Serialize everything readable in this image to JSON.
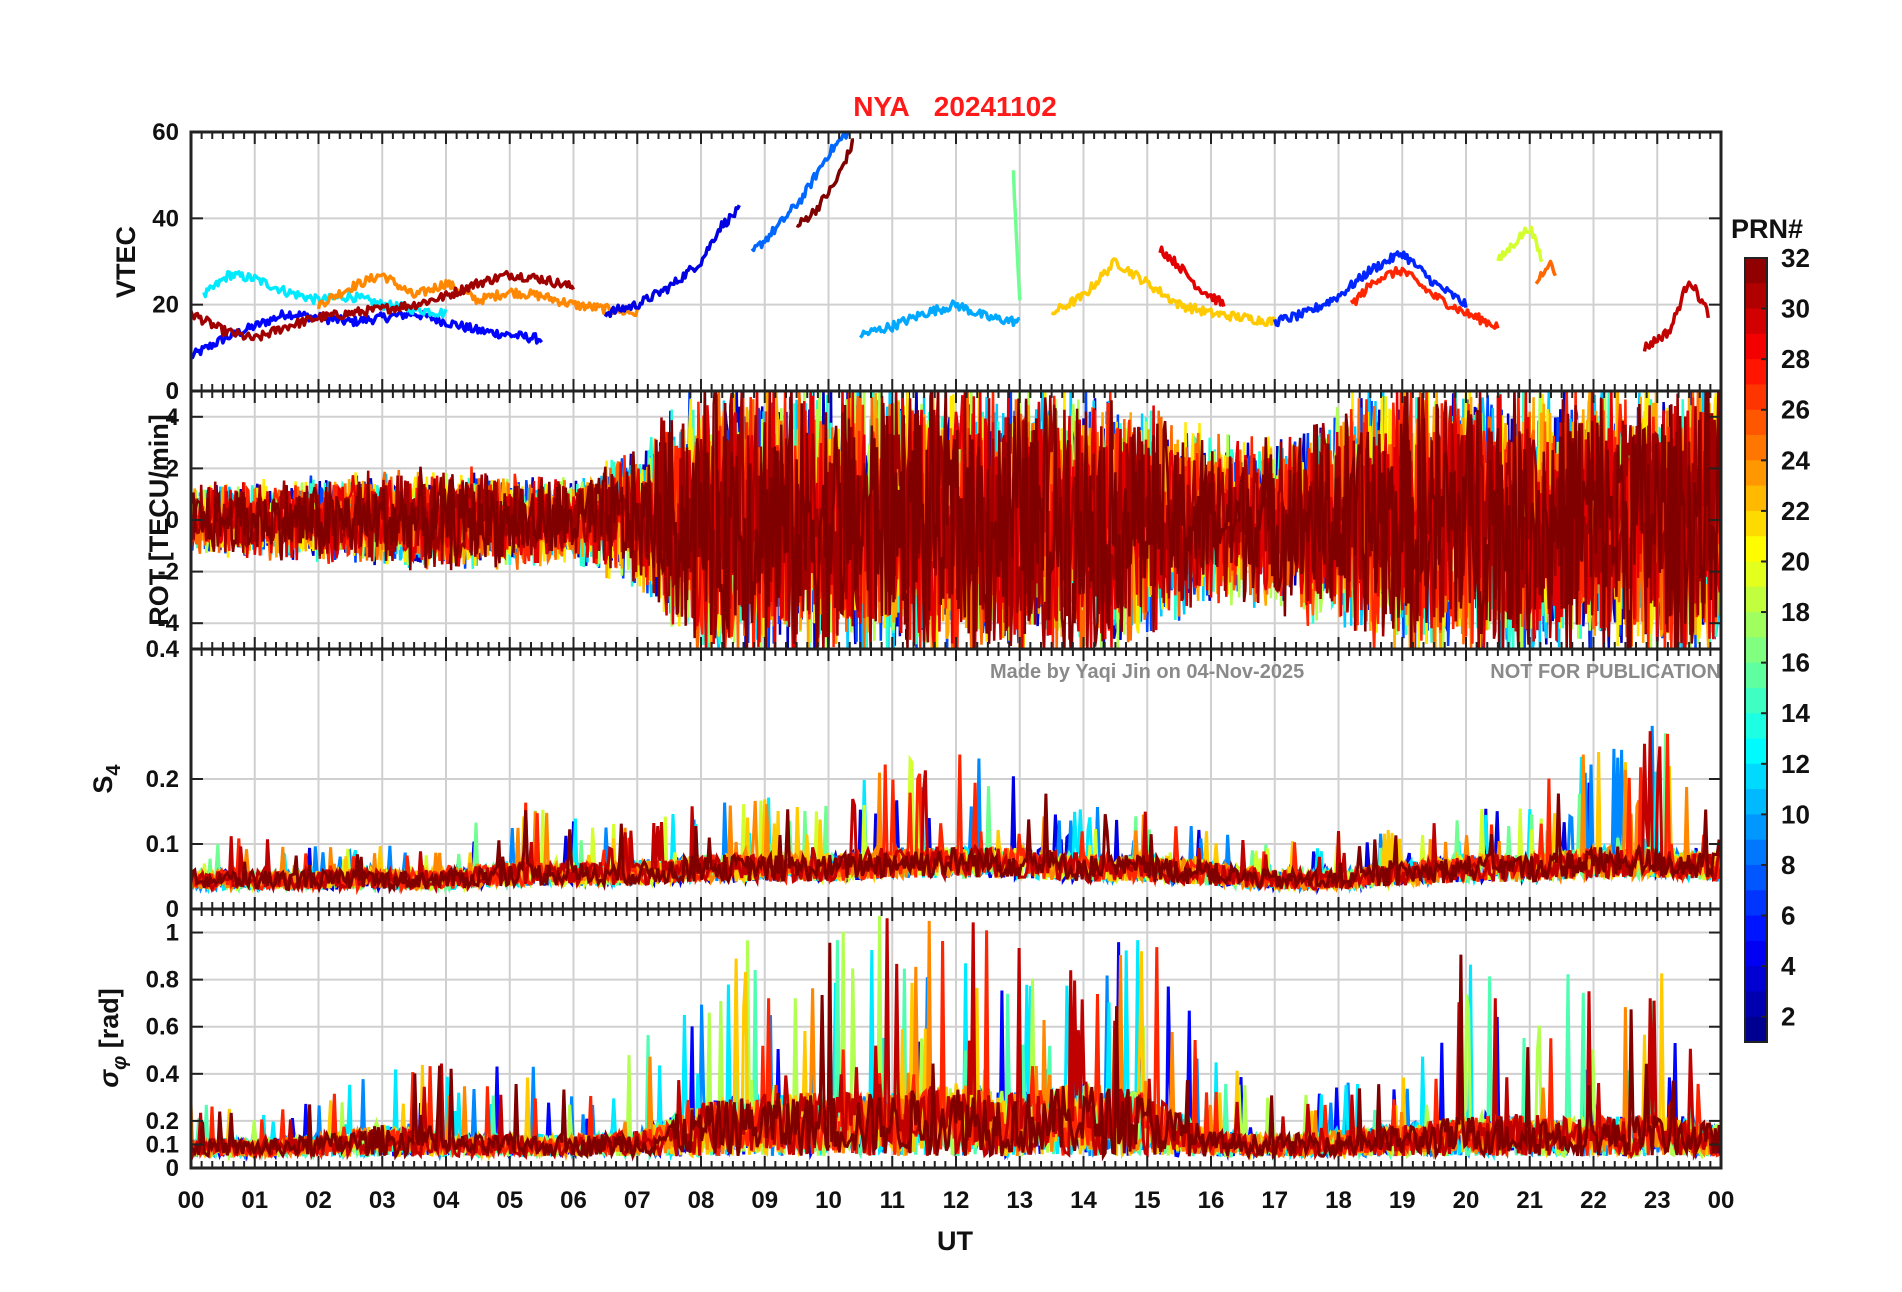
{
  "figure": {
    "title_station": "NYA",
    "title_date": "20241102",
    "watermark_author": "Made by Yaqi Jin on 04-Nov-2025",
    "watermark_notice": "NOT FOR PUBLICATION",
    "x_axis_label": "UT",
    "colorbar_title": "PRN#",
    "colorbar_ticks": [
      "2",
      "4",
      "6",
      "8",
      "10",
      "12",
      "14",
      "16",
      "18",
      "20",
      "22",
      "24",
      "26",
      "28",
      "30",
      "32"
    ],
    "colorbar_range": [
      1,
      32
    ],
    "colormap": "jet"
  },
  "chart_data": [
    {
      "type": "line",
      "panel": "vtec",
      "ylabel": "VTEC",
      "xlim": [
        0,
        24
      ],
      "ylim": [
        0,
        60
      ],
      "yticks": [
        0,
        20,
        40,
        60
      ],
      "xticks": [
        "00",
        "01",
        "02",
        "03",
        "04",
        "05",
        "06",
        "07",
        "08",
        "09",
        "10",
        "11",
        "12",
        "13",
        "14",
        "15",
        "16",
        "17",
        "18",
        "19",
        "20",
        "21",
        "22",
        "23",
        "00"
      ],
      "grid": true,
      "series_color_by": "PRN",
      "series": [
        {
          "prn": 5,
          "x": [
            0,
            0.5,
            1,
            1.5,
            2,
            2.5,
            3,
            3.5,
            4,
            4.5,
            5,
            5.5
          ],
          "y": [
            8,
            12,
            15,
            18,
            17,
            16,
            17,
            18,
            16,
            14,
            13,
            12
          ]
        },
        {
          "prn": 12,
          "x": [
            0.2,
            0.6,
            1,
            1.5,
            2,
            2.5,
            3,
            3.5,
            4
          ],
          "y": [
            22,
            27,
            26,
            23,
            21,
            22,
            20,
            19,
            18
          ]
        },
        {
          "prn": 24,
          "x": [
            2,
            2.5,
            3,
            3.5,
            4,
            4.5,
            5,
            5.5,
            6,
            6.5,
            7
          ],
          "y": [
            20,
            24,
            27,
            22,
            25,
            21,
            23,
            22,
            20,
            19,
            18
          ]
        },
        {
          "prn": 31,
          "x": [
            0,
            0.5,
            1,
            1.5,
            2,
            2.5,
            3,
            3.5,
            4,
            4.5,
            5,
            5.5,
            6
          ],
          "y": [
            18,
            14,
            12,
            15,
            17,
            18,
            19,
            20,
            22,
            25,
            27,
            26,
            24
          ]
        },
        {
          "prn": 4,
          "x": [
            6.5,
            7,
            7.5,
            8,
            8.3,
            8.6
          ],
          "y": [
            18,
            20,
            24,
            30,
            38,
            42
          ]
        },
        {
          "prn": 8,
          "x": [
            8.8,
            9.2,
            9.6,
            10,
            10.3
          ],
          "y": [
            32,
            38,
            45,
            55,
            60
          ]
        },
        {
          "prn": 32,
          "x": [
            9.5,
            9.8,
            10.1,
            10.4
          ],
          "y": [
            38,
            42,
            48,
            58
          ]
        },
        {
          "prn": 10,
          "x": [
            10.5,
            11,
            11.5,
            12,
            12.5,
            13
          ],
          "y": [
            13,
            15,
            18,
            20,
            17,
            16
          ]
        },
        {
          "prn": 16,
          "x": [
            12.9,
            13
          ],
          "y": [
            51,
            20
          ]
        },
        {
          "prn": 22,
          "x": [
            13.5,
            14,
            14.5,
            15,
            15.5,
            16,
            16.5,
            17
          ],
          "y": [
            18,
            22,
            30,
            25,
            20,
            18,
            17,
            16
          ]
        },
        {
          "prn": 29,
          "x": [
            15.2,
            15.5,
            15.8,
            16.2
          ],
          "y": [
            33,
            29,
            24,
            20
          ]
        },
        {
          "prn": 6,
          "x": [
            17,
            17.5,
            18,
            18.5,
            19,
            19.5,
            20
          ],
          "y": [
            16,
            18,
            22,
            28,
            32,
            25,
            20
          ]
        },
        {
          "prn": 27,
          "x": [
            18.2,
            18.6,
            19,
            19.5,
            20,
            20.5
          ],
          "y": [
            20,
            26,
            28,
            22,
            18,
            15
          ]
        },
        {
          "prn": 19,
          "x": [
            20.5,
            20.8,
            21,
            21.2
          ],
          "y": [
            30,
            35,
            38,
            30
          ]
        },
        {
          "prn": 25,
          "x": [
            21.1,
            21.3,
            21.4
          ],
          "y": [
            25,
            30,
            27
          ]
        },
        {
          "prn": 30,
          "x": [
            22.8,
            23.2,
            23.5,
            23.8
          ],
          "y": [
            10,
            14,
            26,
            18
          ]
        }
      ]
    },
    {
      "type": "line",
      "panel": "rot",
      "ylabel": "ROT [TECU/min]",
      "xlim": [
        0,
        24
      ],
      "ylim": [
        -5,
        5
      ],
      "yticks": [
        -4,
        -2,
        0,
        2,
        4
      ],
      "grid": true,
      "series_color_by": "PRN",
      "activity_profile": {
        "hours": [
          0,
          2,
          4,
          6,
          7,
          8,
          9,
          10,
          11,
          12,
          13,
          14,
          15,
          16,
          17,
          18,
          19,
          20,
          21,
          22,
          23,
          24
        ],
        "amplitude": [
          1.2,
          1.5,
          1.8,
          1.5,
          2.5,
          5,
          5,
          5,
          5,
          5,
          5,
          5,
          4,
          3,
          3,
          4,
          5,
          5,
          5,
          5,
          5,
          5
        ]
      }
    },
    {
      "type": "line",
      "panel": "s4",
      "ylabel": "S4",
      "xlim": [
        0,
        24
      ],
      "ylim": [
        0,
        0.4
      ],
      "yticks": [
        0,
        0.1,
        0.2
      ],
      "ytick_labels": [
        "0",
        "0.1",
        "0.2"
      ],
      "extra_ytick_label_top": "0.4",
      "grid": true,
      "series_color_by": "PRN",
      "activity_profile": {
        "hours": [
          0,
          2,
          4,
          5,
          6,
          7,
          8,
          9,
          10,
          11,
          12,
          13,
          14,
          15,
          16,
          17,
          18,
          19,
          20,
          21,
          22,
          23,
          24
        ],
        "baseline": [
          0.05,
          0.05,
          0.05,
          0.06,
          0.06,
          0.06,
          0.07,
          0.07,
          0.07,
          0.08,
          0.08,
          0.08,
          0.07,
          0.07,
          0.06,
          0.05,
          0.05,
          0.06,
          0.07,
          0.07,
          0.08,
          0.08,
          0.07
        ],
        "peak": [
          0.12,
          0.1,
          0.1,
          0.18,
          0.14,
          0.13,
          0.17,
          0.17,
          0.2,
          0.24,
          0.25,
          0.2,
          0.16,
          0.15,
          0.12,
          0.1,
          0.12,
          0.14,
          0.15,
          0.18,
          0.25,
          0.3,
          0.12
        ]
      }
    },
    {
      "type": "line",
      "panel": "sigma_phi",
      "ylabel": "σφ [rad]",
      "xlim": [
        0,
        24
      ],
      "ylim": [
        0,
        1.1
      ],
      "yticks": [
        0,
        0.1,
        0.2,
        0.4,
        0.6,
        0.8,
        1
      ],
      "ytick_labels": [
        "0",
        "0.1",
        "0.2",
        "0.4",
        "0.6",
        "0.8",
        "1"
      ],
      "grid": true,
      "series_color_by": "PRN",
      "activity_profile": {
        "hours": [
          0,
          1,
          2,
          3,
          4,
          5,
          6,
          7,
          8,
          9,
          10,
          11,
          12,
          13,
          14,
          15,
          16,
          17,
          18,
          19,
          20,
          21,
          22,
          23,
          24
        ],
        "baseline": [
          0.08,
          0.08,
          0.1,
          0.15,
          0.1,
          0.1,
          0.1,
          0.12,
          0.25,
          0.3,
          0.3,
          0.3,
          0.35,
          0.3,
          0.35,
          0.3,
          0.12,
          0.1,
          0.12,
          0.15,
          0.2,
          0.2,
          0.18,
          0.2,
          0.15
        ],
        "peak": [
          0.3,
          0.22,
          0.3,
          0.42,
          0.45,
          0.5,
          0.35,
          0.5,
          0.9,
          1.0,
          1.0,
          1.1,
          1.1,
          0.95,
          0.95,
          1.05,
          0.5,
          0.3,
          0.35,
          0.45,
          1.0,
          0.65,
          1.0,
          0.9,
          0.4
        ]
      }
    }
  ]
}
